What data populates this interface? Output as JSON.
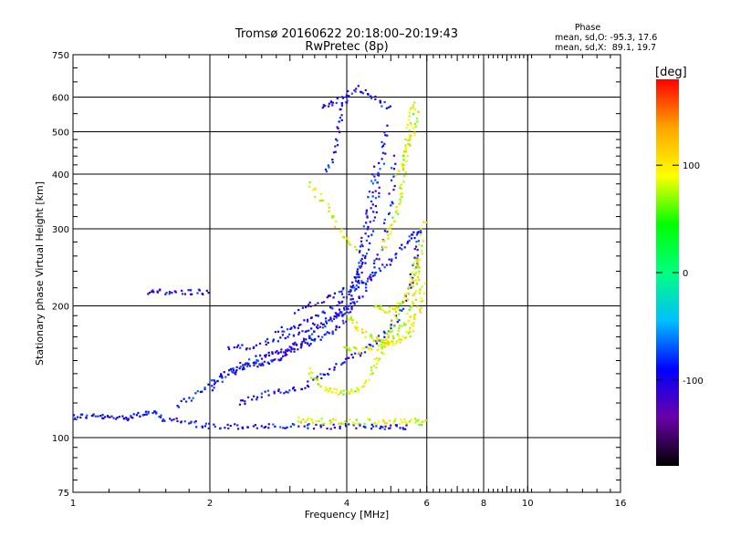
{
  "chart_data": {
    "type": "scatter",
    "title": "Tromsø 20160622 20:18:00–20:19:43",
    "subtitle": "RwPretec (8p)",
    "xlabel": "Frequency [MHz]",
    "ylabel": "Stationary phase Virtual Height [km]",
    "x_scale": "log",
    "y_scale": "log",
    "xlim": [
      1,
      16
    ],
    "ylim": [
      75,
      750
    ],
    "x_ticks": [
      "1",
      "2",
      "4",
      "6",
      "8",
      "10",
      "16"
    ],
    "y_ticks": [
      "750",
      "600",
      "500",
      "400",
      "300",
      "200",
      "100",
      "75"
    ],
    "grid": true,
    "stats": {
      "title": "Phase",
      "line_o": "mean, sd,O: -95.3, 17.6",
      "line_x": "mean, sd,X:  89.1, 19.7"
    },
    "colorbar": {
      "label": "[deg]",
      "ticks": [
        "100",
        "0",
        "-100"
      ],
      "range": [
        -180,
        180
      ],
      "colors": [
        "#000000",
        "#6a00a8",
        "#0000ff",
        "#00bfff",
        "#00ff7f",
        "#00ff00",
        "#ffff00",
        "#ffa500",
        "#ff0000"
      ]
    },
    "series": [
      {
        "mode": "O",
        "phase": -95.3,
        "traces": [
          [
            [
              1.0,
              112
            ],
            [
              1.1,
              112
            ],
            [
              1.2,
              111
            ],
            [
              1.3,
              111
            ],
            [
              1.4,
              113
            ],
            [
              1.5,
              114
            ],
            [
              1.6,
              110
            ],
            [
              1.8,
              108
            ],
            [
              2.0,
              106
            ],
            [
              2.3,
              106
            ],
            [
              2.6,
              106
            ],
            [
              3.0,
              106
            ],
            [
              3.5,
              106
            ],
            [
              4.0,
              106
            ],
            [
              4.5,
              106
            ],
            [
              5.0,
              106
            ],
            [
              5.5,
              106
            ]
          ],
          [
            [
              1.45,
              215
            ],
            [
              1.6,
              215
            ],
            [
              1.8,
              215
            ],
            [
              2.0,
              215
            ]
          ],
          [
            [
              1.7,
              118
            ],
            [
              1.9,
              128
            ],
            [
              2.1,
              138
            ],
            [
              2.3,
              145
            ],
            [
              2.5,
              150
            ],
            [
              2.7,
              155
            ],
            [
              2.9,
              158
            ],
            [
              3.1,
              162
            ],
            [
              3.3,
              168
            ],
            [
              3.5,
              180
            ],
            [
              3.8,
              190
            ],
            [
              4.0,
              200
            ]
          ],
          [
            [
              2.0,
              130
            ],
            [
              2.2,
              140
            ],
            [
              2.4,
              145
            ],
            [
              2.6,
              148
            ],
            [
              2.8,
              150
            ],
            [
              3.0,
              158
            ],
            [
              3.3,
              165
            ],
            [
              3.6,
              172
            ],
            [
              3.9,
              182
            ],
            [
              4.1,
              200
            ],
            [
              4.2,
              230
            ],
            [
              4.3,
              260
            ],
            [
              4.4,
              300
            ],
            [
              4.5,
              350
            ],
            [
              4.6,
              420
            ]
          ],
          [
            [
              2.2,
              160
            ],
            [
              2.5,
              162
            ],
            [
              2.8,
              168
            ],
            [
              3.2,
              175
            ],
            [
              3.6,
              185
            ],
            [
              4.0,
              195
            ],
            [
              4.3,
              210
            ],
            [
              4.6,
              240
            ],
            [
              4.8,
              280
            ],
            [
              5.0,
              350
            ],
            [
              5.1,
              450
            ]
          ],
          [
            [
              2.3,
              120
            ],
            [
              2.6,
              125
            ],
            [
              2.9,
              128
            ],
            [
              3.2,
              130
            ],
            [
              3.6,
              140
            ],
            [
              4.0,
              150
            ],
            [
              4.4,
              160
            ],
            [
              4.8,
              170
            ],
            [
              5.2,
              190
            ],
            [
              5.5,
              220
            ],
            [
              5.7,
              260
            ],
            [
              5.8,
              300
            ]
          ],
          [
            [
              2.8,
              175
            ],
            [
              3.1,
              180
            ],
            [
              3.5,
              190
            ],
            [
              3.9,
              205
            ],
            [
              4.2,
              230
            ],
            [
              4.4,
              260
            ],
            [
              4.6,
              320
            ],
            [
              4.7,
              380
            ],
            [
              4.8,
              450
            ],
            [
              4.9,
              520
            ]
          ],
          [
            [
              3.1,
              195
            ],
            [
              3.5,
              205
            ],
            [
              3.9,
              215
            ],
            [
              4.3,
              225
            ],
            [
              4.7,
              240
            ],
            [
              5.1,
              260
            ],
            [
              5.5,
              285
            ],
            [
              5.8,
              300
            ]
          ],
          [
            [
              3.6,
              400
            ],
            [
              3.8,
              480
            ],
            [
              3.9,
              560
            ],
            [
              4.0,
              610
            ]
          ],
          [
            [
              3.5,
              570
            ],
            [
              3.8,
              590
            ],
            [
              4.2,
              630
            ],
            [
              4.6,
              600
            ],
            [
              5.0,
              560
            ]
          ]
        ]
      },
      {
        "mode": "X",
        "phase": 89.1,
        "traces": [
          [
            [
              3.1,
              110
            ],
            [
              3.4,
              109
            ],
            [
              3.8,
              109
            ],
            [
              4.2,
              109
            ],
            [
              4.7,
              109
            ],
            [
              5.2,
              109
            ],
            [
              5.6,
              109
            ],
            [
              6.0,
              108
            ]
          ],
          [
            [
              3.3,
              142
            ],
            [
              3.5,
              132
            ],
            [
              3.7,
              128
            ],
            [
              4.0,
              126
            ],
            [
              4.3,
              130
            ],
            [
              4.6,
              145
            ],
            [
              4.8,
              160
            ],
            [
              5.0,
              175
            ],
            [
              5.2,
              195
            ]
          ],
          [
            [
              4.0,
              190
            ],
            [
              4.2,
              180
            ],
            [
              4.5,
              170
            ],
            [
              4.8,
              165
            ],
            [
              5.1,
              165
            ],
            [
              5.4,
              170
            ],
            [
              5.6,
              180
            ],
            [
              5.8,
              200
            ],
            [
              5.9,
              230
            ]
          ],
          [
            [
              3.9,
              160
            ],
            [
              4.3,
              158
            ],
            [
              4.7,
              160
            ],
            [
              5.1,
              170
            ],
            [
              5.4,
              185
            ],
            [
              5.6,
              205
            ],
            [
              5.7,
              230
            ],
            [
              5.8,
              260
            ],
            [
              5.9,
              320
            ]
          ],
          [
            [
              4.6,
              200
            ],
            [
              4.9,
              195
            ],
            [
              5.2,
              200
            ],
            [
              5.4,
              210
            ],
            [
              5.6,
              230
            ],
            [
              5.7,
              260
            ]
          ],
          [
            [
              4.8,
              270
            ],
            [
              5.0,
              300
            ],
            [
              5.2,
              340
            ],
            [
              5.3,
              380
            ],
            [
              5.4,
              450
            ],
            [
              5.5,
              520
            ],
            [
              5.6,
              600
            ]
          ],
          [
            [
              3.3,
              380
            ],
            [
              3.6,
              340
            ],
            [
              3.9,
              290
            ],
            [
              4.2,
              270
            ]
          ],
          [
            [
              5.2,
              400
            ],
            [
              5.4,
              450
            ],
            [
              5.6,
              500
            ],
            [
              5.7,
              570
            ]
          ]
        ]
      }
    ]
  }
}
